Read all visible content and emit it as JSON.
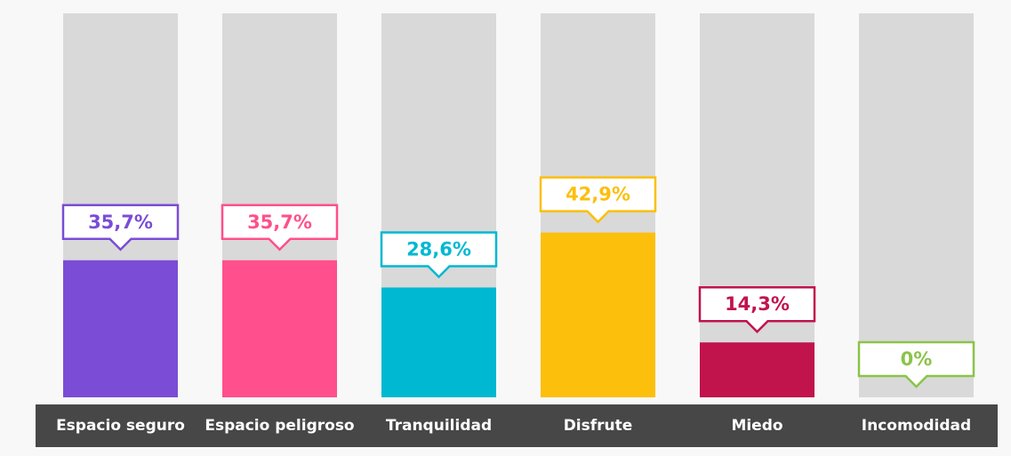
{
  "chart_data": {
    "type": "bar",
    "categories": [
      "Espacio seguro",
      "Espacio peligroso",
      "Tranquilidad",
      "Disfrute",
      "Miedo",
      "Incomodidad"
    ],
    "values": [
      35.7,
      35.7,
      28.6,
      42.9,
      14.3,
      0
    ],
    "value_labels": [
      "35,7%",
      "35,7%",
      "28,6%",
      "42,9%",
      "14,3%",
      "0%"
    ],
    "colors": [
      "#7b4cd5",
      "#ff4f8c",
      "#00b8d1",
      "#fcbf0b",
      "#c1134c",
      "#8bc34a"
    ],
    "ylim": [
      0,
      100
    ]
  }
}
